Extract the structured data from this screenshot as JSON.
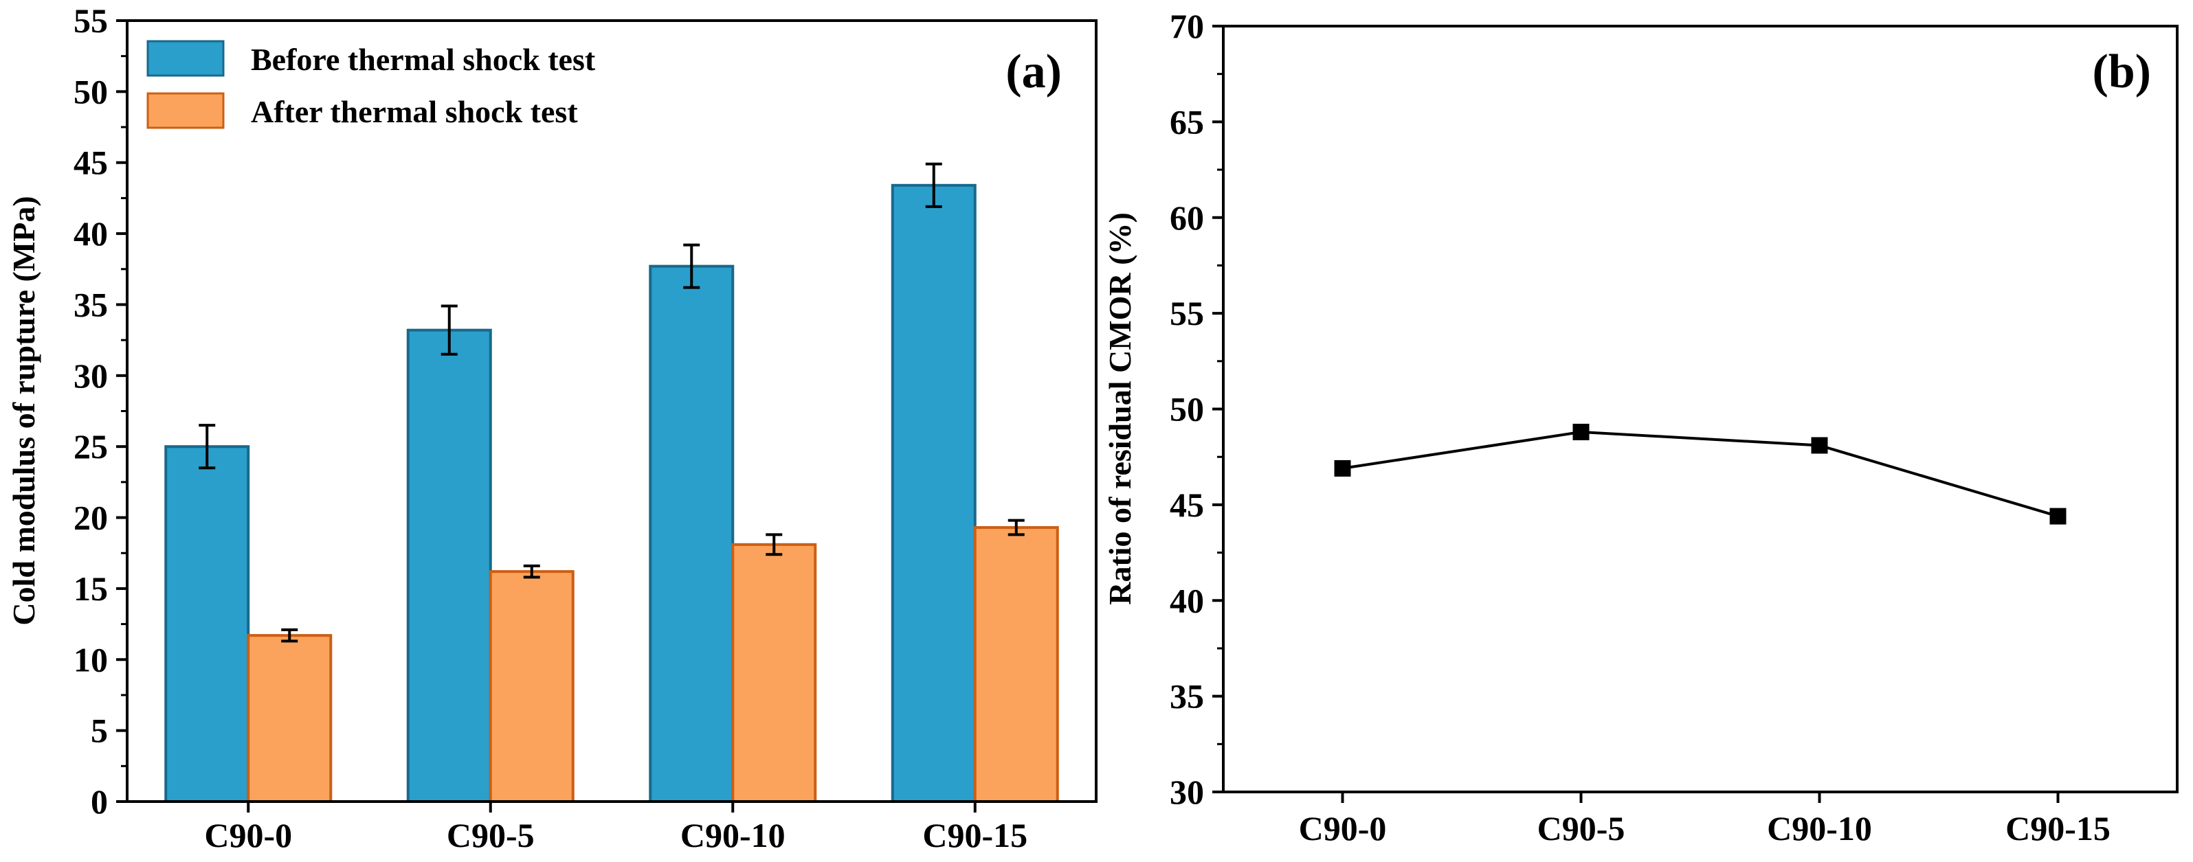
{
  "chart_data": [
    {
      "panel": "(a)",
      "type": "bar",
      "categories": [
        "C90-0",
        "C90-5",
        "C90-10",
        "C90-15"
      ],
      "series": [
        {
          "name": "Before thermal shock test",
          "values": [
            25.0,
            33.2,
            37.7,
            43.4
          ],
          "errors": [
            1.5,
            1.7,
            1.5,
            1.5
          ],
          "color": "#2b9fcb",
          "edge": "#18698c"
        },
        {
          "name": "After thermal shock test",
          "values": [
            11.7,
            16.2,
            18.1,
            19.3
          ],
          "errors": [
            0.4,
            0.4,
            0.7,
            0.5
          ],
          "color": "#fba35c",
          "edge": "#cc5f14"
        }
      ],
      "ylabel": "Cold modulus of rupture (MPa)",
      "xlabel": "",
      "ylim": [
        0,
        55
      ],
      "yticks": [
        0,
        5,
        10,
        15,
        20,
        25,
        30,
        35,
        40,
        45,
        50,
        55
      ],
      "legend_position": "top-left",
      "grid": false
    },
    {
      "panel": "(b)",
      "type": "line",
      "categories": [
        "C90-0",
        "C90-5",
        "C90-10",
        "C90-15"
      ],
      "series": [
        {
          "name": "Ratio of residual CMOR",
          "values": [
            46.9,
            48.8,
            48.1,
            44.4
          ],
          "color": "#000000",
          "marker": "square"
        }
      ],
      "ylabel": "Ratio of residual CMOR (%)",
      "xlabel": "",
      "ylim": [
        30,
        70
      ],
      "yticks": [
        30,
        35,
        40,
        45,
        50,
        55,
        60,
        65,
        70
      ],
      "grid": false
    }
  ]
}
